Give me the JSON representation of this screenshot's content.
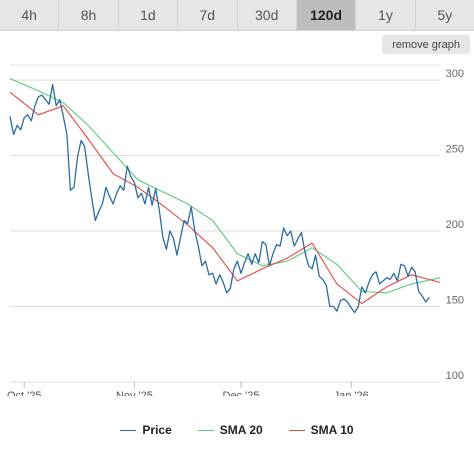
{
  "tabs": [
    {
      "label": "4h",
      "active": false
    },
    {
      "label": "8h",
      "active": false
    },
    {
      "label": "1d",
      "active": false
    },
    {
      "label": "7d",
      "active": false
    },
    {
      "label": "30d",
      "active": false
    },
    {
      "label": "120d",
      "active": true
    },
    {
      "label": "1y",
      "active": false
    },
    {
      "label": "5y",
      "active": false
    }
  ],
  "remove_graph_label": "remove graph",
  "chart_data": {
    "type": "line",
    "title": "",
    "xlabel": "",
    "ylabel": "",
    "ylim": [
      100,
      310
    ],
    "yticks": [
      100,
      150,
      200,
      250,
      300
    ],
    "xlim": [
      "2025-09-27",
      "2026-01-26"
    ],
    "xticks": [
      {
        "date": "2025-10-01",
        "label": "Oct '25"
      },
      {
        "date": "2025-11-01",
        "label": "Nov '25"
      },
      {
        "date": "2025-12-01",
        "label": "Dec '25"
      },
      {
        "date": "2026-01-01",
        "label": "Jan '26"
      }
    ],
    "grid": true,
    "legend": "bottom",
    "series": [
      {
        "name": "Price",
        "color": "#2b6ca3",
        "points": [
          [
            "2025-09-27",
            276
          ],
          [
            "2025-09-28",
            264
          ],
          [
            "2025-09-29",
            270
          ],
          [
            "2025-09-30",
            267
          ],
          [
            "2025-10-01",
            275
          ],
          [
            "2025-10-02",
            277
          ],
          [
            "2025-10-03",
            273
          ],
          [
            "2025-10-04",
            283
          ],
          [
            "2025-10-05",
            289
          ],
          [
            "2025-10-06",
            290
          ],
          [
            "2025-10-07",
            287
          ],
          [
            "2025-10-08",
            284
          ],
          [
            "2025-10-09",
            297
          ],
          [
            "2025-10-10",
            283
          ],
          [
            "2025-10-11",
            287
          ],
          [
            "2025-10-12",
            276
          ],
          [
            "2025-10-13",
            264
          ],
          [
            "2025-10-14",
            227
          ],
          [
            "2025-10-15",
            229
          ],
          [
            "2025-10-16",
            249
          ],
          [
            "2025-10-17",
            260
          ],
          [
            "2025-10-18",
            256
          ],
          [
            "2025-10-19",
            238
          ],
          [
            "2025-10-20",
            222
          ],
          [
            "2025-10-21",
            207
          ],
          [
            "2025-10-22",
            213
          ],
          [
            "2025-10-23",
            218
          ],
          [
            "2025-10-24",
            229
          ],
          [
            "2025-10-25",
            223
          ],
          [
            "2025-10-26",
            218
          ],
          [
            "2025-10-27",
            225
          ],
          [
            "2025-10-28",
            230
          ],
          [
            "2025-10-29",
            227
          ],
          [
            "2025-10-30",
            243
          ],
          [
            "2025-10-31",
            236
          ],
          [
            "2025-11-01",
            232
          ],
          [
            "2025-11-02",
            222
          ],
          [
            "2025-11-03",
            225
          ],
          [
            "2025-11-04",
            218
          ],
          [
            "2025-11-05",
            229
          ],
          [
            "2025-11-06",
            217
          ],
          [
            "2025-11-07",
            228
          ],
          [
            "2025-11-08",
            214
          ],
          [
            "2025-11-09",
            196
          ],
          [
            "2025-11-10",
            188
          ],
          [
            "2025-11-11",
            200
          ],
          [
            "2025-11-12",
            195
          ],
          [
            "2025-11-13",
            184
          ],
          [
            "2025-11-14",
            196
          ],
          [
            "2025-11-15",
            207
          ],
          [
            "2025-11-16",
            205
          ],
          [
            "2025-11-17",
            216
          ],
          [
            "2025-11-18",
            200
          ],
          [
            "2025-11-19",
            190
          ],
          [
            "2025-11-20",
            177
          ],
          [
            "2025-11-21",
            180
          ],
          [
            "2025-11-22",
            171
          ],
          [
            "2025-11-23",
            172
          ],
          [
            "2025-11-24",
            165
          ],
          [
            "2025-11-25",
            171
          ],
          [
            "2025-11-26",
            166
          ],
          [
            "2025-11-27",
            159
          ],
          [
            "2025-11-28",
            162
          ],
          [
            "2025-11-29",
            175
          ],
          [
            "2025-11-30",
            180
          ],
          [
            "2025-12-01",
            172
          ],
          [
            "2025-12-02",
            179
          ],
          [
            "2025-12-03",
            185
          ],
          [
            "2025-12-04",
            178
          ],
          [
            "2025-12-05",
            185
          ],
          [
            "2025-12-06",
            179
          ],
          [
            "2025-12-07",
            193
          ],
          [
            "2025-12-08",
            191
          ],
          [
            "2025-12-09",
            177
          ],
          [
            "2025-12-10",
            185
          ],
          [
            "2025-12-11",
            191
          ],
          [
            "2025-12-12",
            190
          ],
          [
            "2025-12-13",
            202
          ],
          [
            "2025-12-14",
            197
          ],
          [
            "2025-12-15",
            200
          ],
          [
            "2025-12-16",
            190
          ],
          [
            "2025-12-17",
            195
          ],
          [
            "2025-12-18",
            199
          ],
          [
            "2025-12-19",
            186
          ],
          [
            "2025-12-20",
            177
          ],
          [
            "2025-12-21",
            175
          ],
          [
            "2025-12-22",
            184
          ],
          [
            "2025-12-23",
            170
          ],
          [
            "2025-12-24",
            168
          ],
          [
            "2025-12-25",
            164
          ],
          [
            "2025-12-26",
            150
          ],
          [
            "2025-12-27",
            150
          ],
          [
            "2025-12-28",
            147
          ],
          [
            "2025-12-29",
            154
          ],
          [
            "2025-12-30",
            155
          ],
          [
            "2025-12-31",
            153
          ],
          [
            "2026-01-01",
            149
          ],
          [
            "2026-01-02",
            146
          ],
          [
            "2026-01-03",
            150
          ],
          [
            "2026-01-04",
            163
          ],
          [
            "2026-01-05",
            159
          ],
          [
            "2026-01-06",
            166
          ],
          [
            "2026-01-07",
            171
          ],
          [
            "2026-01-08",
            173
          ],
          [
            "2026-01-09",
            165
          ],
          [
            "2026-01-10",
            167
          ],
          [
            "2026-01-11",
            169
          ],
          [
            "2026-01-12",
            168
          ],
          [
            "2026-01-13",
            172
          ],
          [
            "2026-01-14",
            167
          ],
          [
            "2026-01-15",
            178
          ],
          [
            "2026-01-16",
            177
          ],
          [
            "2026-01-17",
            170
          ],
          [
            "2026-01-18",
            176
          ],
          [
            "2026-01-19",
            173
          ],
          [
            "2026-01-20",
            160
          ],
          [
            "2026-01-21",
            157
          ],
          [
            "2026-01-22",
            153
          ],
          [
            "2026-01-23",
            156
          ]
        ]
      },
      {
        "name": "SMA 20",
        "color": "#5cc97e",
        "points": [
          [
            "2025-09-27",
            301
          ],
          [
            "2025-10-05",
            293
          ],
          [
            "2025-10-12",
            285
          ],
          [
            "2025-10-19",
            270
          ],
          [
            "2025-10-26",
            252
          ],
          [
            "2025-11-02",
            234
          ],
          [
            "2025-11-09",
            226
          ],
          [
            "2025-11-16",
            218
          ],
          [
            "2025-11-23",
            207
          ],
          [
            "2025-11-30",
            185
          ],
          [
            "2025-12-07",
            177
          ],
          [
            "2025-12-14",
            180
          ],
          [
            "2025-12-21",
            189
          ],
          [
            "2025-12-28",
            178
          ],
          [
            "2026-01-04",
            160
          ],
          [
            "2026-01-11",
            159
          ],
          [
            "2026-01-18",
            165
          ],
          [
            "2026-01-26",
            169
          ]
        ]
      },
      {
        "name": "SMA 10",
        "color": "#e5483f",
        "points": [
          [
            "2025-09-27",
            292
          ],
          [
            "2025-10-05",
            277
          ],
          [
            "2025-10-12",
            283
          ],
          [
            "2025-10-19",
            261
          ],
          [
            "2025-10-26",
            238
          ],
          [
            "2025-11-02",
            229
          ],
          [
            "2025-11-09",
            217
          ],
          [
            "2025-11-16",
            204
          ],
          [
            "2025-11-23",
            189
          ],
          [
            "2025-11-30",
            167
          ],
          [
            "2025-12-07",
            175
          ],
          [
            "2025-12-14",
            182
          ],
          [
            "2025-12-21",
            192
          ],
          [
            "2025-12-28",
            165
          ],
          [
            "2026-01-04",
            152
          ],
          [
            "2026-01-11",
            163
          ],
          [
            "2026-01-18",
            171
          ],
          [
            "2026-01-26",
            166
          ]
        ]
      }
    ]
  }
}
